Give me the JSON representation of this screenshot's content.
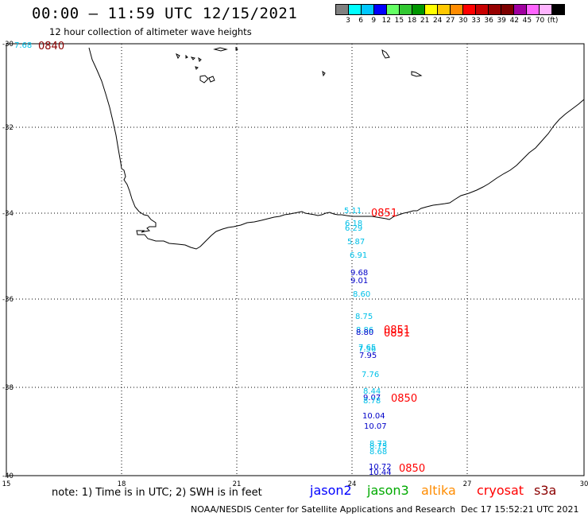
{
  "title": "00:00 – 11:59 UTC 12/15/2021",
  "subtitle": "12 hour collection of altimeter wave heights",
  "scale": {
    "colors": [
      "#808080",
      "#00ffff",
      "#00c8ff",
      "#0000ff",
      "#64ff64",
      "#32c832",
      "#009600",
      "#ffff00",
      "#ffc800",
      "#ff8c00",
      "#ff0000",
      "#c80000",
      "#960000",
      "#7d0000",
      "#a000a0",
      "#ff64ff",
      "#ffb4ff",
      "#000000"
    ],
    "labels": [
      "3",
      "6",
      "9",
      "12",
      "15",
      "18",
      "21",
      "24",
      "27",
      "30",
      "33",
      "36",
      "39",
      "42",
      "45",
      "70",
      "(ft)"
    ]
  },
  "axes": {
    "lon_labels": [
      "15",
      "18",
      "21",
      "24",
      "27",
      "30"
    ],
    "lat_labels": [
      "-30",
      "-32",
      "-34",
      "-36",
      "-38",
      "-40"
    ]
  },
  "wave_colors": {
    "cyan": "#00c0e8",
    "blue": "#0000c8",
    "darkred": "#8b0000",
    "red": "#ff0000"
  },
  "wave_heights": [
    {
      "text": "7.68",
      "color": "cyan"
    },
    {
      "text": "5.11",
      "color": "cyan"
    },
    {
      "text": "6.18",
      "color": "cyan"
    },
    {
      "text": "6.29",
      "color": "cyan"
    },
    {
      "text": "5.87",
      "color": "cyan"
    },
    {
      "text": "6.91",
      "color": "cyan"
    },
    {
      "text": "9.68",
      "color": "blue"
    },
    {
      "text": "9.01",
      "color": "blue"
    },
    {
      "text": "8.60",
      "color": "cyan"
    },
    {
      "text": "8.75",
      "color": "cyan"
    },
    {
      "text": "8.86",
      "color": "cyan"
    },
    {
      "text": "8.80",
      "color": "blue"
    },
    {
      "text": "7.65",
      "color": "cyan"
    },
    {
      "text": "7.56",
      "color": "cyan"
    },
    {
      "text": "7.95",
      "color": "blue"
    },
    {
      "text": "7.76",
      "color": "cyan"
    },
    {
      "text": "8.44",
      "color": "cyan"
    },
    {
      "text": "9.07",
      "color": "blue"
    },
    {
      "text": "8.78",
      "color": "cyan"
    },
    {
      "text": "10.04",
      "color": "blue"
    },
    {
      "text": "10.07",
      "color": "blue"
    },
    {
      "text": "8.73",
      "color": "cyan"
    },
    {
      "text": "8.75",
      "color": "cyan"
    },
    {
      "text": "8.68",
      "color": "cyan"
    },
    {
      "text": "10.72",
      "color": "blue"
    },
    {
      "text": "10.44",
      "color": "blue"
    }
  ],
  "time_labels": [
    {
      "text": "0840",
      "color": "darkred"
    },
    {
      "text": "0851",
      "color": "red"
    },
    {
      "text": "0851",
      "color": "red"
    },
    {
      "text": "0851",
      "color": "red"
    },
    {
      "text": "0850",
      "color": "red"
    },
    {
      "text": "0850",
      "color": "red"
    }
  ],
  "footer": {
    "note": "note:  1) Time is in UTC;  2) SWH is in feet",
    "satellites": [
      {
        "name": "jason2",
        "color": "#0000ff"
      },
      {
        "name": "jason3",
        "color": "#00aa00"
      },
      {
        "name": "altika",
        "color": "#ff8c00"
      },
      {
        "name": "cryosat",
        "color": "#ff0000"
      },
      {
        "name": "s3a",
        "color": "#8b0000"
      }
    ],
    "credit": "NOAA/NESDIS Center for Satellite Applications and Research",
    "timestamp": "Dec 17 15:52:21 UTC 2021"
  }
}
